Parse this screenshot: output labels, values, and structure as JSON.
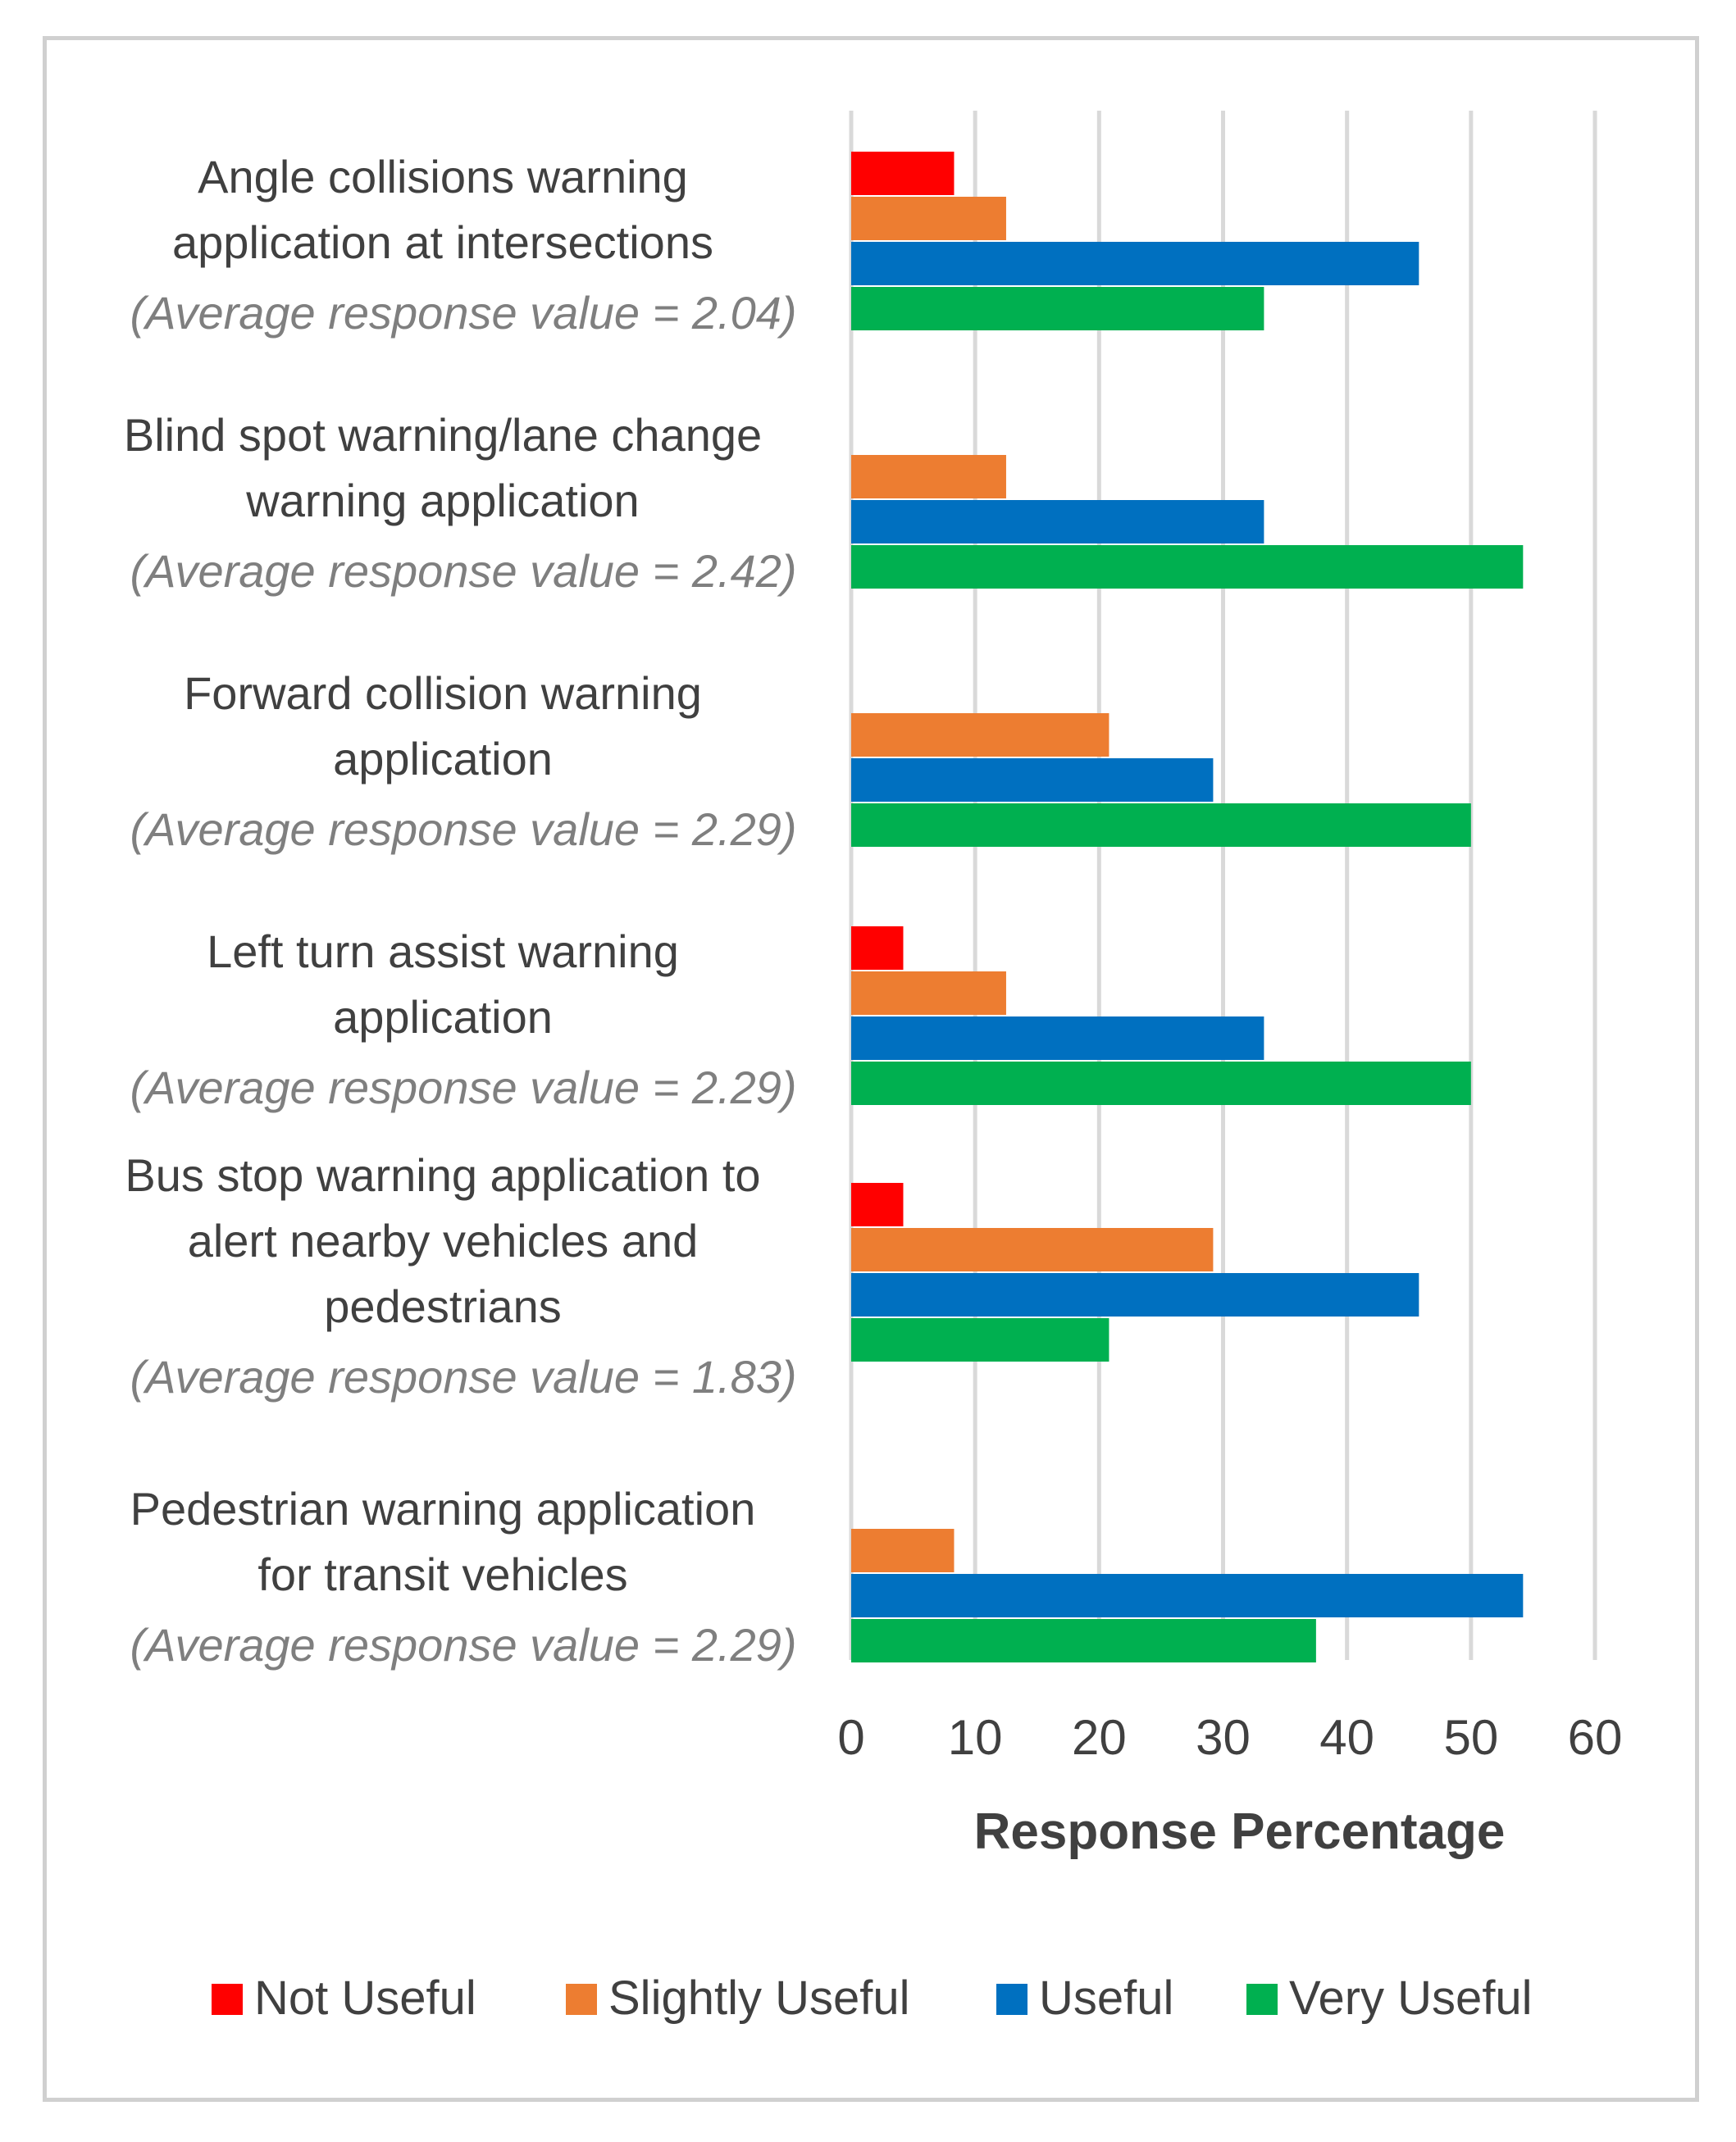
{
  "chart_data": {
    "type": "bar",
    "orientation": "horizontal",
    "title": "",
    "xlabel": "Response Percentage",
    "ylabel": "",
    "xlim": [
      0,
      60
    ],
    "xticks": [
      0,
      10,
      20,
      30,
      40,
      50,
      60
    ],
    "grid": true,
    "legend_position": "bottom",
    "categories": [
      {
        "lines": [
          "Angle collisions warning",
          "application at intersections"
        ],
        "avg": "(Average response value = 2.04)"
      },
      {
        "lines": [
          "Blind spot warning/lane change",
          "warning application"
        ],
        "avg": "(Average response value = 2.42)"
      },
      {
        "lines": [
          "Forward collision warning",
          "application"
        ],
        "avg": "(Average response value = 2.29)"
      },
      {
        "lines": [
          "Left turn assist warning",
          "application"
        ],
        "avg": "(Average response value = 2.29)"
      },
      {
        "lines": [
          "Bus stop warning application to",
          "alert nearby vehicles and",
          "pedestrians"
        ],
        "avg": "(Average response value = 1.83)"
      },
      {
        "lines": [
          "Pedestrian warning application",
          "for transit vehicles"
        ],
        "avg": "(Average response value = 2.29)"
      }
    ],
    "series": [
      {
        "name": "Not Useful",
        "color": "#ff0000",
        "values": [
          8.3,
          0,
          0,
          4.2,
          4.2,
          0
        ]
      },
      {
        "name": "Slightly Useful",
        "color": "#ed7d31",
        "values": [
          12.5,
          12.5,
          20.8,
          12.5,
          29.2,
          8.3
        ]
      },
      {
        "name": "Useful",
        "color": "#0070c0",
        "values": [
          45.8,
          33.3,
          29.2,
          33.3,
          45.8,
          54.2
        ]
      },
      {
        "name": "Very Useful",
        "color": "#00b050",
        "values": [
          33.3,
          54.2,
          50.0,
          50.0,
          20.8,
          37.5
        ]
      }
    ]
  }
}
